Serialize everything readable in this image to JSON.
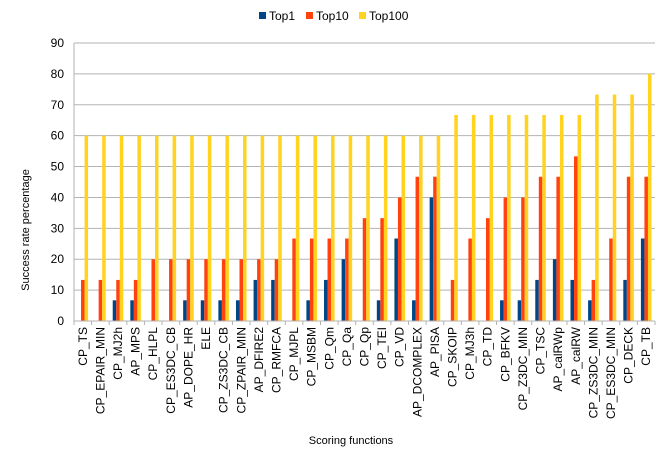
{
  "chart_data": {
    "type": "bar",
    "xlabel": "Scoring functions",
    "ylabel": "Success rate percentage",
    "ylim": [
      0,
      90
    ],
    "yticks": [
      0,
      10,
      20,
      30,
      40,
      50,
      60,
      70,
      80,
      90
    ],
    "grid": "horizontal",
    "legend_position": "top-center",
    "categories": [
      "CP_TS",
      "CP_EPAIR_MIN",
      "CP_MJ2h",
      "AP_MPS",
      "CP_HLPL",
      "CP_ES3DC_CB",
      "AP_DOPE_HR",
      "ELE",
      "CP_ZS3DC_CB",
      "CP_ZPAIR_MIN",
      "AP_DFIRE2",
      "CP_RMFCA",
      "CP_MJPL",
      "CP_MSBM",
      "CP_Qm",
      "CP_Qa",
      "CP_Qp",
      "CP_TEI",
      "CP_VD",
      "AP_DCOMPLEX",
      "AP_PISA",
      "CP_SKOIP",
      "CP_MJ3h",
      "CP_TD",
      "CP_BFKV",
      "CP_Z3DC_MIN",
      "CP_TSC",
      "AP_calRWp",
      "AP_calRW",
      "CP_ZS3DC_MIN",
      "CP_ES3DC_MIN",
      "CP_DECK",
      "CP_TB"
    ],
    "series": [
      {
        "name": "Top1",
        "color": "#004586",
        "values": [
          0,
          0,
          6.7,
          6.7,
          0,
          0,
          6.7,
          6.7,
          6.7,
          6.7,
          13.3,
          13.3,
          0,
          6.7,
          13.3,
          20,
          0,
          6.7,
          26.7,
          6.7,
          40,
          0,
          0,
          0,
          6.7,
          6.7,
          13.3,
          20,
          13.3,
          6.7,
          0,
          13.3,
          26.7
        ]
      },
      {
        "name": "Top10",
        "color": "#ff420e",
        "values": [
          13.3,
          13.3,
          13.3,
          13.3,
          20,
          20,
          20,
          20,
          20,
          20,
          20,
          20,
          26.7,
          26.7,
          26.7,
          26.7,
          33.3,
          33.3,
          40,
          46.7,
          46.7,
          13.3,
          26.7,
          33.3,
          40,
          40,
          46.7,
          46.7,
          53.3,
          13.3,
          26.7,
          46.7,
          46.7
        ]
      },
      {
        "name": "Top100",
        "color": "#ffd320",
        "values": [
          60,
          60,
          60,
          60,
          60,
          60,
          60,
          60,
          60,
          60,
          60,
          60,
          60,
          60,
          60,
          60,
          60,
          60,
          60,
          60,
          60,
          66.7,
          66.7,
          66.7,
          66.7,
          66.7,
          66.7,
          66.7,
          66.7,
          73.3,
          73.3,
          73.3,
          80
        ]
      }
    ]
  }
}
